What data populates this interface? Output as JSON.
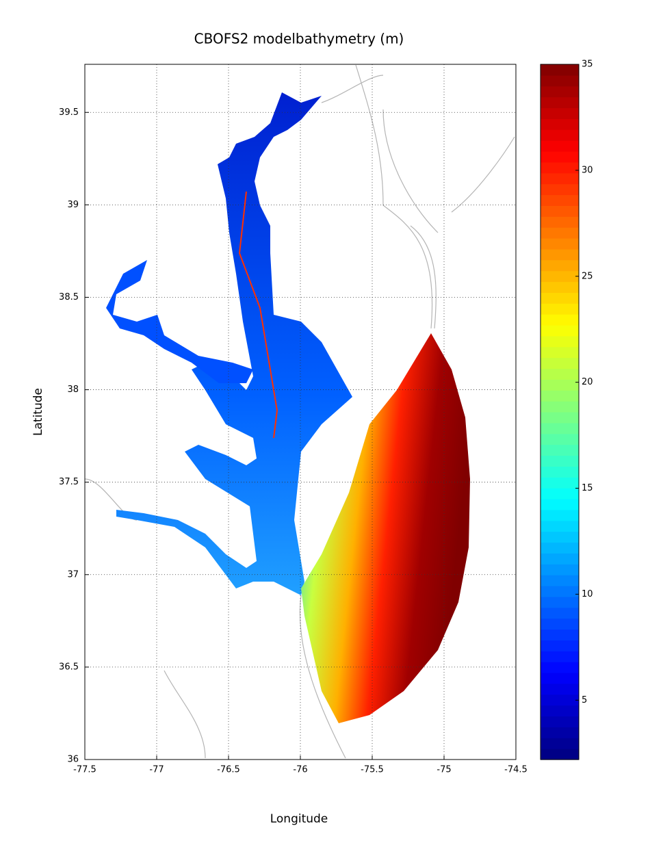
{
  "chart_data": {
    "type": "map",
    "title": "CBOFS2 modelbathymetry (m)",
    "xlabel": "Longitude",
    "ylabel": "Latitude",
    "xlim": [
      -77.5,
      -74.5
    ],
    "xticks": [
      -77.5,
      -77,
      -76.5,
      -76,
      -75.5,
      -75,
      -74.5
    ],
    "ylim": [
      36,
      39.76
    ],
    "yticks": [
      36,
      36.5,
      37,
      37.5,
      38,
      38.5,
      39,
      39.5
    ],
    "grid": true,
    "colormap": "jet",
    "colorbar": {
      "lim": [
        2.2,
        35
      ],
      "ticks": [
        5,
        10,
        15,
        20,
        25,
        30,
        35
      ]
    }
  }
}
